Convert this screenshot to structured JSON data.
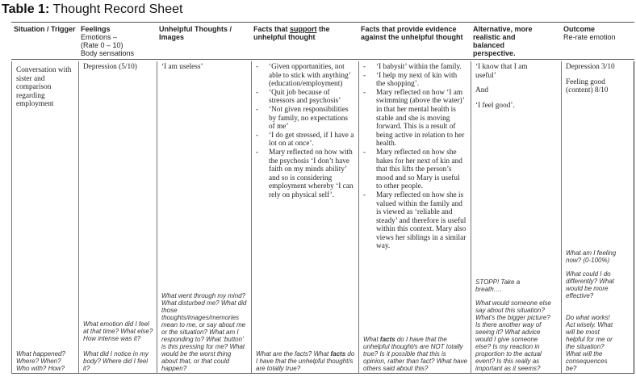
{
  "title": {
    "label": "Table 1:",
    "text": "Thought Record Sheet"
  },
  "headers": [
    {
      "bold": "Situation / Trigger",
      "sub": []
    },
    {
      "bold": "Feelings",
      "sub": [
        "Emotions –",
        "(Rate  0 – 10)",
        "Body sensations"
      ]
    },
    {
      "bold": "Unhelpful Thoughts / Images",
      "sub": []
    },
    {
      "bold_pre": "Facts that ",
      "underline": "support",
      "bold_post": " the unhelpful thought",
      "sub": []
    },
    {
      "bold": "Facts that provide evidence against the unhelpful thought",
      "sub": []
    },
    {
      "bold": "Alternative, more realistic and balanced perspective.",
      "sub": []
    },
    {
      "bold": "Outcome",
      "sub": [
        "Re-rate emotion"
      ]
    }
  ],
  "row": {
    "situation": "Conversation with sister and comparison regarding employment",
    "feelings": "Depression (5/10)",
    "thoughts": "‘I am useless’",
    "support": [
      "‘Given opportunities, not able to stick with anything’ (education/employment)",
      "‘Quit job because of stressors and psychosis’",
      "‘Not given responsibilities by family, no expectations of me’",
      "‘I do get stressed, if I have a lot on at once’.",
      "Mary reflected on how with the psychosis ‘I don’t have faith on my minds ability’ and so is considering employment whereby ‘I can rely on physical self’."
    ],
    "against": [
      "‘I babysit’ within the family.",
      "‘I help my next of kin with the shopping’.",
      "Mary reflected on how ‘I am swimming (above the water)’ in that her mental health is stable and she is moving forward. This is a result of being active in relation to her health.",
      "Mary reflected on how she bakes for her next of kin and that this lifts the person’s mood and so Mary is useful to other people.",
      "Mary reflected on how she is valued within the family and is viewed as ‘reliable and steady’ and therefore is useful within this context. Mary also views her siblings in a similar way."
    ],
    "alternative": [
      "‘I know that I am useful’",
      "And",
      "‘I feel good’."
    ],
    "outcome": [
      "Depression 3/10",
      "Feeling good (content) 8/10"
    ]
  },
  "prompts": {
    "situation": "What happened? Where? When? Who with? How?",
    "feelings_1": "What emotion did I feel at that time? What else? How intense was it?",
    "feelings_2": "What did I notice in my body? Where did I feel it?",
    "thoughts": "What went through my mind? What disturbed me? What did those thoughts/images/memories mean to me, or say about me or the situation? What am I responding to? What ‘button’ is this pressing for me? What would be the worst thing about that, or that could happen?",
    "support_pre": "What are the facts? What ",
    "support_bold": "facts",
    "support_post": " do I have that the unhelpful thought/s are totally true?",
    "against_pre": "What ",
    "against_bold": "facts",
    "against_post": " do I have that the unhelpful thought/s are NOT totally true? Is it possible that this is opinion, rather than fact? What have others said about this?",
    "alternative_1": "STOPP!  Take a breath….",
    "alternative_2": "What would someone else say about this situation? What’s the bigger picture? Is there another way of seeing it? What advice would I give someone else? Is my reaction in proportion to the actual event? Is this really as important as it seems?",
    "outcome_1": "What am I feeling now? (0-100%)",
    "outcome_2": "What could I do differently? What would be more effective?",
    "outcome_3": "Do what works! Act wisely. What will be most helpful for me or the situation? What will the consequences be?"
  }
}
